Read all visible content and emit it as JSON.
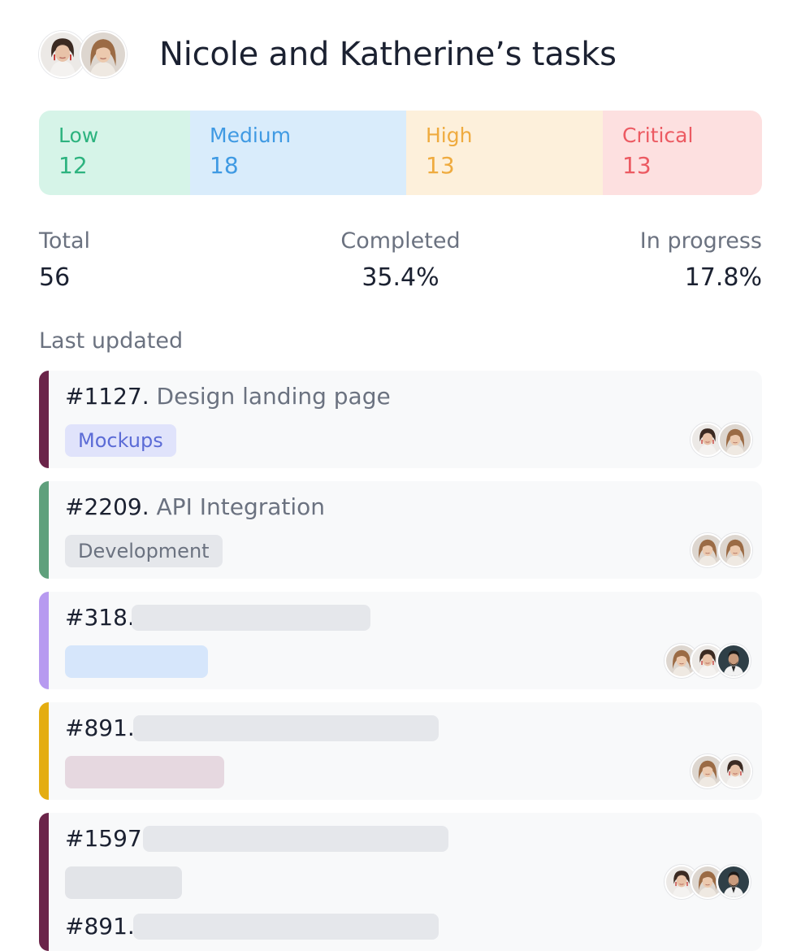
{
  "header": {
    "title": "Nicole and Katherine’s tasks",
    "avatars": [
      "nicole-avatar",
      "katherine-avatar"
    ]
  },
  "priorities": [
    {
      "label": "Low",
      "value": "12",
      "color": "#2db37f",
      "bg": "#d6f4e8"
    },
    {
      "label": "Medium",
      "value": "18",
      "color": "#3f9ae3",
      "bg": "#d9ecfb"
    },
    {
      "label": "High",
      "value": "13",
      "color": "#efab3f",
      "bg": "#fdf0db"
    },
    {
      "label": "Critical",
      "value": "13",
      "color": "#ec5a62",
      "bg": "#fde0e0"
    }
  ],
  "stats": {
    "total": {
      "label": "Total",
      "value": "56"
    },
    "completed": {
      "label": "Completed",
      "value": "35.4%"
    },
    "in_progress": {
      "label": "In progress",
      "value": "17.8%"
    }
  },
  "section": {
    "title": "Last updated"
  },
  "tasks": [
    {
      "id": "#1127.",
      "name": "Design landing page",
      "tag": "Mockups",
      "tag_color": "#5b6bd6",
      "tag_bg": "#e0e3fb",
      "accent": "#6b2449",
      "assignees": [
        "nicole-avatar",
        "katherine-avatar"
      ]
    },
    {
      "id": "#2209.",
      "name": "API Integration",
      "tag": "Development",
      "tag_color": "#6b7280",
      "tag_bg": "#e5e7eb",
      "accent": "#5fa07c",
      "assignees": [
        "katherine-avatar",
        "katherine-avatar"
      ]
    },
    {
      "id": "#318.",
      "name": "",
      "tag": "",
      "tag_bg": "#d6e6fb",
      "accent": "#b79af0",
      "assignees": [
        "katherine-avatar",
        "nicole-avatar",
        "man-avatar"
      ]
    },
    {
      "id": "#891.",
      "name": "",
      "tag": "",
      "tag_bg": "#e6d8e0",
      "accent": "#e4ad11",
      "assignees": [
        "katherine-avatar",
        "nicole-avatar"
      ]
    },
    {
      "id": "#1597.",
      "name": "",
      "tag": "",
      "tag_bg": "#e2e4e8",
      "accent": "#6b2449",
      "assignees": [
        "nicole-avatar",
        "katherine-avatar",
        "man-avatar"
      ]
    },
    {
      "id": "#891.",
      "name": "",
      "tag": "",
      "tag_bg": "",
      "accent": "#6b2449",
      "assignees": []
    }
  ]
}
